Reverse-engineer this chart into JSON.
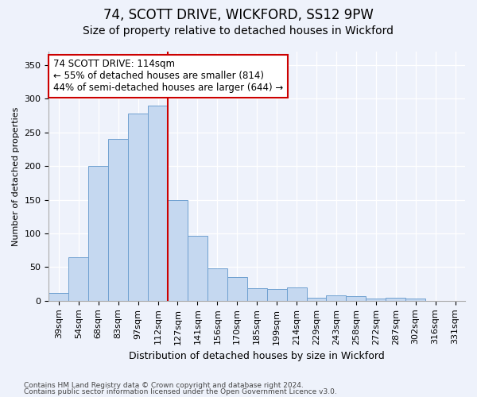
{
  "title1": "74, SCOTT DRIVE, WICKFORD, SS12 9PW",
  "title2": "Size of property relative to detached houses in Wickford",
  "xlabel": "Distribution of detached houses by size in Wickford",
  "ylabel": "Number of detached properties",
  "categories": [
    "39sqm",
    "54sqm",
    "68sqm",
    "83sqm",
    "97sqm",
    "112sqm",
    "127sqm",
    "141sqm",
    "156sqm",
    "170sqm",
    "185sqm",
    "199sqm",
    "214sqm",
    "229sqm",
    "243sqm",
    "258sqm",
    "272sqm",
    "287sqm",
    "302sqm",
    "316sqm",
    "331sqm"
  ],
  "values": [
    12,
    65,
    200,
    240,
    278,
    290,
    150,
    97,
    48,
    35,
    19,
    18,
    20,
    5,
    8,
    7,
    3,
    5,
    3,
    0,
    0
  ],
  "bar_color": "#c5d8f0",
  "bar_edge_color": "#6fa0d0",
  "vline_x_index": 5,
  "vline_color": "#cc0000",
  "annotation_text": "74 SCOTT DRIVE: 114sqm\n← 55% of detached houses are smaller (814)\n44% of semi-detached houses are larger (644) →",
  "annotation_box_facecolor": "#ffffff",
  "annotation_box_edgecolor": "#cc0000",
  "ylim": [
    0,
    370
  ],
  "yticks": [
    0,
    50,
    100,
    150,
    200,
    250,
    300,
    350
  ],
  "footer1": "Contains HM Land Registry data © Crown copyright and database right 2024.",
  "footer2": "Contains public sector information licensed under the Open Government Licence v3.0.",
  "bg_color": "#eef2fb",
  "grid_color": "#ffffff",
  "title1_fontsize": 12,
  "title2_fontsize": 10,
  "xlabel_fontsize": 9,
  "ylabel_fontsize": 8,
  "tick_fontsize": 8,
  "footer_fontsize": 6.5,
  "annot_fontsize": 8.5
}
